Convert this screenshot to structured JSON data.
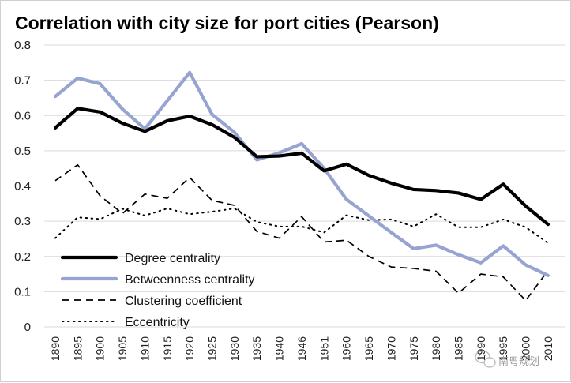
{
  "chart_data": {
    "type": "line",
    "title": "Correlation with city size for port cities (Pearson)",
    "xlabel": "",
    "ylabel": "",
    "ylim": [
      0,
      0.8
    ],
    "yticks": [
      "0",
      "0.1",
      "0.2",
      "0.3",
      "0.4",
      "0.5",
      "0.6",
      "0.7",
      "0.8"
    ],
    "grid": true,
    "legend_position": "bottom-left",
    "categories": [
      "1890",
      "1895",
      "1900",
      "1905",
      "1910",
      "1915",
      "1920",
      "1925",
      "1930",
      "1935",
      "1940",
      "1946",
      "1951",
      "1960",
      "1965",
      "1970",
      "1975",
      "1980",
      "1985",
      "1990",
      "1995",
      "2000",
      "2010"
    ],
    "series": [
      {
        "name": "Degree centrality",
        "style": "solid-thick",
        "color": "#000000",
        "values": [
          0.565,
          0.62,
          0.61,
          0.578,
          0.555,
          0.585,
          0.598,
          0.574,
          0.538,
          0.483,
          0.485,
          0.493,
          0.443,
          0.462,
          0.43,
          0.408,
          0.39,
          0.387,
          0.38,
          0.362,
          0.405,
          0.343,
          0.291
        ]
      },
      {
        "name": "Betweenness centrality",
        "style": "solid-light",
        "color": "#97a3d0",
        "values": [
          0.654,
          0.706,
          0.69,
          0.618,
          0.562,
          0.642,
          0.722,
          0.603,
          0.552,
          0.474,
          0.494,
          0.52,
          0.45,
          0.362,
          0.315,
          0.268,
          0.222,
          0.232,
          0.205,
          0.182,
          0.23,
          0.176,
          0.146
        ]
      },
      {
        "name": "Clustering coefficient",
        "style": "dashed",
        "color": "#000000",
        "values": [
          0.415,
          0.46,
          0.372,
          0.322,
          0.377,
          0.365,
          0.424,
          0.359,
          0.345,
          0.271,
          0.252,
          0.313,
          0.241,
          0.246,
          0.2,
          0.17,
          0.166,
          0.158,
          0.096,
          0.15,
          0.142,
          0.075,
          0.16
        ]
      },
      {
        "name": "Eccentricity",
        "style": "dotted",
        "color": "#000000",
        "values": [
          0.252,
          0.311,
          0.306,
          0.335,
          0.316,
          0.336,
          0.32,
          0.327,
          0.336,
          0.298,
          0.285,
          0.285,
          0.268,
          0.317,
          0.303,
          0.305,
          0.285,
          0.32,
          0.283,
          0.283,
          0.305,
          0.283,
          0.238
        ]
      }
    ]
  },
  "watermark": {
    "text": "南粤规划",
    "icon": "wechat-icon"
  }
}
